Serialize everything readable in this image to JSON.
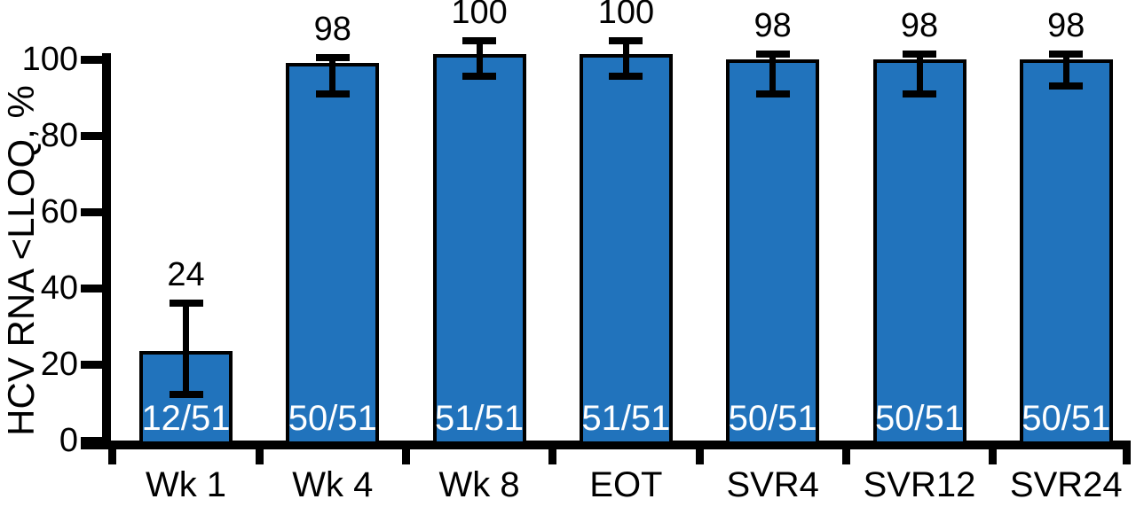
{
  "chart_data": {
    "type": "bar",
    "title": "",
    "xlabel": "",
    "ylabel": "HCV RNA <LLOQ, %",
    "categories": [
      "Wk 1",
      "Wk 4",
      "Wk 8",
      "EOT",
      "SVR4",
      "SVR12",
      "SVR24"
    ],
    "values": [
      24,
      98,
      100,
      100,
      98,
      98,
      98
    ],
    "value_labels": [
      "24",
      "98",
      "100",
      "100",
      "98",
      "98",
      "98"
    ],
    "fractions": [
      "12/51",
      "50/51",
      "51/51",
      "51/51",
      "50/51",
      "50/51",
      "50/51"
    ],
    "bar_heights_pct": [
      23.5,
      99,
      101.3,
      101.3,
      100,
      100,
      100
    ],
    "error_bars": [
      {
        "low": 12,
        "high": 36
      },
      {
        "low": 91,
        "high": 100.5
      },
      {
        "low": 95.5,
        "high": 105
      },
      {
        "low": 95.5,
        "high": 105
      },
      {
        "low": 91,
        "high": 101.5
      },
      {
        "low": 91,
        "high": 101.5
      },
      {
        "low": 93,
        "high": 101.5
      }
    ],
    "y_ticks": [
      0,
      20,
      40,
      60,
      80,
      100
    ],
    "ylim": [
      0,
      105
    ],
    "grid": false,
    "legend": null,
    "colors": {
      "bar_fill": "#2173BC",
      "bar_edge": "#000000",
      "axis": "#000000",
      "fraction_text": "#FFFFFF",
      "label_text": "#000000"
    }
  }
}
